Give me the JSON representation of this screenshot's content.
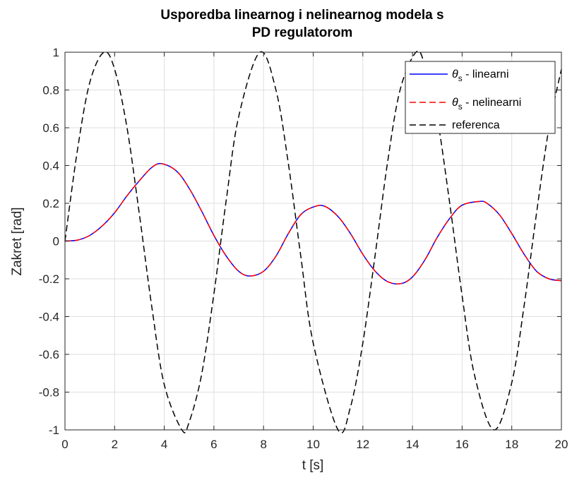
{
  "chart_data": {
    "type": "line",
    "title_line1": "Usporedba linearnog i nelinearnog modela s",
    "title_line2": "PD regulatorom",
    "xlabel": "t [s]",
    "ylabel": "Zakret [rad]",
    "xlim": [
      0,
      20
    ],
    "ylim": [
      -1,
      1
    ],
    "xticks": [
      0,
      2,
      4,
      6,
      8,
      10,
      12,
      14,
      16,
      18,
      20
    ],
    "xtick_labels": [
      "0",
      "2",
      "4",
      "6",
      "8",
      "10",
      "12",
      "14",
      "16",
      "18",
      "20"
    ],
    "yticks": [
      1,
      0.8,
      0.6,
      0.4,
      0.2,
      0,
      -0.2,
      -0.4,
      -0.6,
      -0.8,
      -1
    ],
    "ytick_labels": [
      "1",
      "0.8",
      "0.6",
      "0.4",
      "0.2",
      "0",
      "-0.2",
      "-0.4",
      "-0.6",
      "-0.8",
      "-1"
    ],
    "grid": true,
    "legend_position": "top-right",
    "series": [
      {
        "name_symbol": "θ",
        "name_sub": "s",
        "name_suffix": " - linearni",
        "color": "#0000ff",
        "style": "solid",
        "x": [
          0,
          0.5,
          1,
          1.5,
          2,
          2.5,
          3,
          3.5,
          3.9,
          4.5,
          5,
          5.5,
          6,
          6.5,
          7,
          7.45,
          8,
          8.5,
          9,
          9.5,
          10,
          10.45,
          11,
          11.5,
          12,
          12.5,
          13,
          13.55,
          14,
          14.5,
          15,
          15.5,
          16,
          16.7,
          17,
          17.5,
          18,
          18.5,
          19,
          19.5,
          20
        ],
        "y": [
          0,
          0.005,
          0.03,
          0.08,
          0.15,
          0.24,
          0.32,
          0.39,
          0.41,
          0.37,
          0.28,
          0.16,
          0.03,
          -0.08,
          -0.16,
          -0.185,
          -0.16,
          -0.08,
          0.04,
          0.14,
          0.18,
          0.185,
          0.13,
          0.04,
          -0.07,
          -0.16,
          -0.215,
          -0.225,
          -0.19,
          -0.1,
          0.02,
          0.12,
          0.19,
          0.21,
          0.2,
          0.14,
          0.04,
          -0.07,
          -0.16,
          -0.2,
          -0.21
        ]
      },
      {
        "name_symbol": "θ",
        "name_sub": "s",
        "name_suffix": " - nelinearni",
        "color": "#ff0000",
        "style": "dashed",
        "x": [
          0,
          0.5,
          1,
          1.5,
          2,
          2.5,
          3,
          3.5,
          3.9,
          4.5,
          5,
          5.5,
          6,
          6.5,
          7,
          7.45,
          8,
          8.5,
          9,
          9.5,
          10,
          10.45,
          11,
          11.5,
          12,
          12.5,
          13,
          13.55,
          14,
          14.5,
          15,
          15.5,
          16,
          16.7,
          17,
          17.5,
          18,
          18.5,
          19,
          19.5,
          20
        ],
        "y": [
          0,
          0.005,
          0.03,
          0.08,
          0.15,
          0.24,
          0.32,
          0.39,
          0.41,
          0.37,
          0.28,
          0.16,
          0.03,
          -0.08,
          -0.16,
          -0.185,
          -0.16,
          -0.08,
          0.04,
          0.14,
          0.18,
          0.185,
          0.13,
          0.04,
          -0.07,
          -0.16,
          -0.215,
          -0.225,
          -0.19,
          -0.1,
          0.02,
          0.12,
          0.19,
          0.21,
          0.2,
          0.14,
          0.04,
          -0.07,
          -0.16,
          -0.2,
          -0.21
        ]
      },
      {
        "name_symbol": "",
        "name_sub": "",
        "name_suffix": "referenca",
        "color": "#000000",
        "style": "dashed",
        "x": [
          0,
          0.5,
          1,
          1.57,
          2,
          2.5,
          3,
          3.5,
          4,
          4.71,
          5,
          5.5,
          6,
          6.5,
          7,
          7.85,
          8.5,
          9,
          9.5,
          10,
          11,
          11.5,
          12,
          12.5,
          13,
          13.5,
          14.14,
          14.5,
          15,
          15.5,
          16,
          16.5,
          17.28,
          18,
          18.5,
          19,
          19.5,
          20
        ],
        "y": [
          0,
          0.48,
          0.84,
          1,
          0.91,
          0.6,
          0.14,
          -0.35,
          -0.76,
          -1,
          -0.96,
          -0.71,
          -0.28,
          0.22,
          0.66,
          1,
          0.8,
          0.41,
          -0.08,
          -0.54,
          -1,
          -0.88,
          -0.54,
          -0.07,
          0.42,
          0.8,
          1,
          0.93,
          0.65,
          0.2,
          -0.29,
          -0.71,
          -1,
          -0.75,
          -0.34,
          0.15,
          0.6,
          0.91
        ]
      }
    ]
  }
}
